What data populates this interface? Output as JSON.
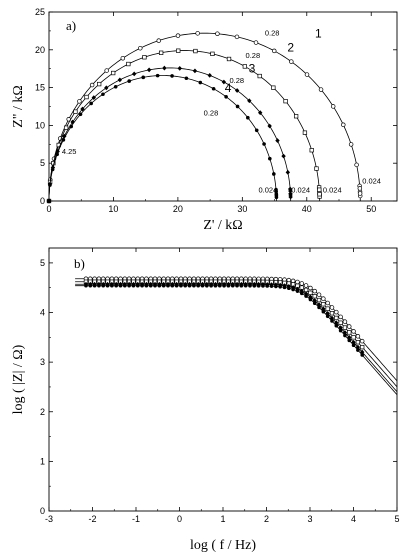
{
  "chart_data": [
    {
      "type": "scatter",
      "panel_label": "a)",
      "xlabel": "Z' / kΩ",
      "ylabel": "Z\" / kΩ",
      "xlim": [
        0,
        54
      ],
      "ylim": [
        0,
        25
      ],
      "xticks": [
        0,
        10,
        20,
        30,
        40,
        50
      ],
      "yticks": [
        0,
        5,
        10,
        15,
        20,
        25
      ],
      "grid": false,
      "series": [
        {
          "name": "1",
          "R": 48.3,
          "peak_y": 22.2,
          "marker": "circle-open"
        },
        {
          "name": "2",
          "R": 42.0,
          "peak_y": 19.9,
          "marker": "square-open"
        },
        {
          "name": "3",
          "R": 37.5,
          "peak_y": 17.6,
          "marker": "diamond-filled"
        },
        {
          "name": "4",
          "R": 35.3,
          "peak_y": 16.6,
          "marker": "circle-filled"
        }
      ],
      "annotations": [
        {
          "text": "0.28",
          "x": 33.5,
          "y": 21.9
        },
        {
          "text": "0.28",
          "x": 30.5,
          "y": 18.9
        },
        {
          "text": "0.28",
          "x": 28.0,
          "y": 15.6
        },
        {
          "text": "0.28",
          "x": 24.0,
          "y": 11.3
        },
        {
          "text": "4.25",
          "x": 2.0,
          "y": 6.2
        },
        {
          "text": "0.024",
          "x": 48.6,
          "y": 2.3
        },
        {
          "text": "0.024",
          "x": 42.5,
          "y": 1.1
        },
        {
          "text": "0.024",
          "x": 37.6,
          "y": 1.1
        },
        {
          "text": "0.024",
          "x": 32.5,
          "y": 1.1
        }
      ]
    },
    {
      "type": "line",
      "panel_label": "b)",
      "xlabel": "log ( f / Hz)",
      "ylabel": "log ( |Z| / Ω)",
      "xlim": [
        -3,
        5
      ],
      "ylim": [
        0,
        5.3
      ],
      "xticks": [
        -3,
        -2,
        -1,
        0,
        1,
        2,
        3,
        4,
        5
      ],
      "yticks": [
        0,
        1,
        2,
        3,
        4,
        5
      ],
      "grid": false,
      "plateau_values": [
        4.68,
        4.62,
        4.57,
        4.54
      ],
      "high_freq_limit": 0.7,
      "data_range_logf": [
        -2.15,
        4.2
      ],
      "fit_range_logf": [
        -2.4,
        5.0
      ]
    }
  ]
}
